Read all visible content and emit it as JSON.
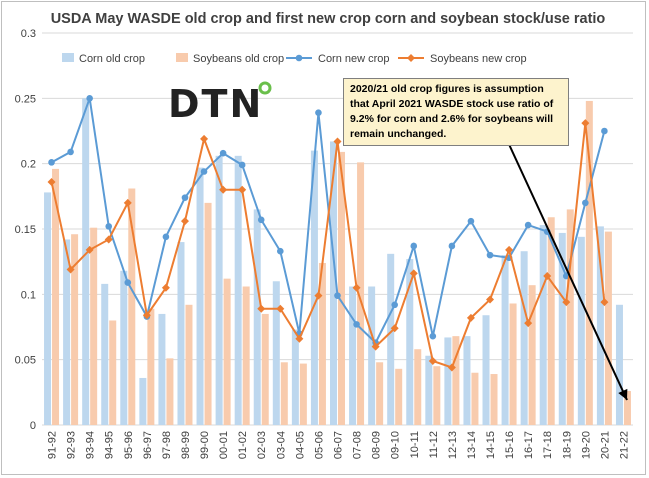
{
  "logo_text": "DTN",
  "annotation": "2020/21 old crop figures is assumption that April 2021 WASDE stock use ratio of 9.2% for corn and 2.6% for soybeans will remain unchanged.",
  "colors": {
    "corn_old": "#bdd7ee",
    "soy_old": "#f8cbad",
    "corn_new": "#5b9bd5",
    "soy_new": "#ed7d31",
    "grid": "#d9d9d9",
    "arrow": "#000000",
    "note_bg": "#fdf3cd",
    "logo_accent": "#6abf4b"
  },
  "chart_data": {
    "type": "bar",
    "title": "USDA May WASDE old crop and first new crop corn and soybean stock/use ratio",
    "xlabel": "",
    "ylabel": "",
    "ylim": [
      0,
      0.3
    ],
    "yticks": [
      "0",
      "0.05",
      "0.1",
      "0.15",
      "0.2",
      "0.25",
      "0.3"
    ],
    "grid": true,
    "legend_position": "top",
    "categories": [
      "91-92",
      "92-93",
      "93-94",
      "94-95",
      "95-96",
      "96-97",
      "97-98",
      "98-99",
      "99-00",
      "00-01",
      "01-02",
      "02-03",
      "03-04",
      "04-05",
      "05-06",
      "06-07",
      "07-08",
      "08-09",
      "09-10",
      "10-11",
      "11-12",
      "12-13",
      "13-14",
      "14-15",
      "15-16",
      "16-17",
      "17-18",
      "18-19",
      "19-20",
      "20-21",
      "21-22"
    ],
    "series": [
      {
        "name": "Corn old crop",
        "kind": "bar",
        "values": [
          0.178,
          0.142,
          0.25,
          0.108,
          0.118,
          0.036,
          0.085,
          0.14,
          0.197,
          0.206,
          0.206,
          0.165,
          0.11,
          0.073,
          0.21,
          0.217,
          0.106,
          0.106,
          0.131,
          0.127,
          0.053,
          0.067,
          0.068,
          0.084,
          0.13,
          0.133,
          0.153,
          0.147,
          0.144,
          0.152,
          0.092
        ]
      },
      {
        "name": "Soybeans old crop",
        "kind": "bar",
        "values": [
          0.196,
          0.146,
          0.151,
          0.08,
          0.181,
          0.089,
          0.051,
          0.092,
          0.17,
          0.112,
          0.106,
          0.085,
          0.048,
          0.047,
          0.124,
          0.209,
          0.201,
          0.048,
          0.043,
          0.058,
          0.045,
          0.068,
          0.04,
          0.039,
          0.093,
          0.107,
          0.159,
          0.165,
          0.248,
          0.148,
          0.026
        ]
      },
      {
        "name": "Corn new crop",
        "kind": "line",
        "values": [
          0.201,
          0.209,
          0.25,
          0.152,
          0.109,
          0.083,
          0.144,
          0.174,
          0.194,
          0.208,
          0.199,
          0.157,
          0.133,
          0.07,
          0.239,
          0.099,
          0.077,
          0.063,
          0.092,
          0.137,
          0.068,
          0.137,
          0.156,
          0.13,
          0.128,
          0.153,
          0.148,
          0.114,
          0.17,
          0.225,
          null
        ]
      },
      {
        "name": "Soybeans new crop",
        "kind": "line",
        "values": [
          0.186,
          0.119,
          0.134,
          0.142,
          0.17,
          0.084,
          0.105,
          0.156,
          0.219,
          0.18,
          0.18,
          0.089,
          0.089,
          0.066,
          0.099,
          0.217,
          0.105,
          0.06,
          0.074,
          0.116,
          0.049,
          0.044,
          0.082,
          0.096,
          0.134,
          0.078,
          0.114,
          0.094,
          0.231,
          0.094,
          null
        ]
      }
    ]
  }
}
